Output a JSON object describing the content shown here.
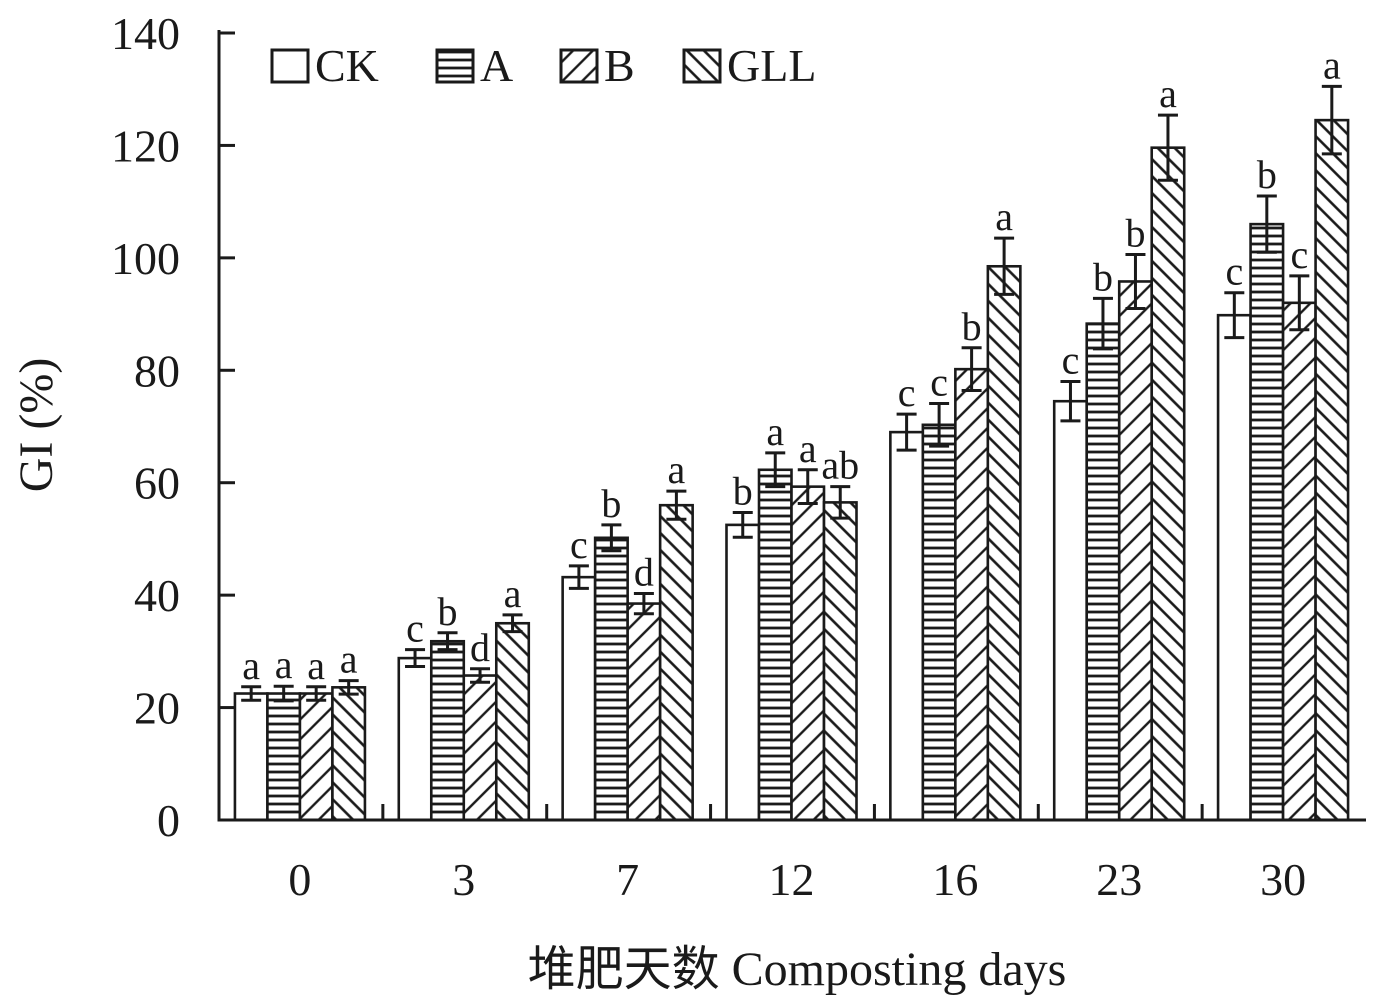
{
  "chart_data": {
    "type": "bar",
    "xlabel": "堆肥天数 Composting days",
    "ylabel": "GI (%)",
    "ylim": [
      0,
      140
    ],
    "yticks": [
      0,
      20,
      40,
      60,
      80,
      100,
      120,
      140
    ],
    "categories": [
      "0",
      "3",
      "7",
      "12",
      "16",
      "23",
      "30"
    ],
    "legend_position": "top-left",
    "grid": false,
    "error_bars": true,
    "series": [
      {
        "name": "CK",
        "pattern": "blank",
        "values": [
          22.5,
          28.8,
          43.2,
          52.5,
          69,
          74.5,
          89.8
        ],
        "errors": [
          1.2,
          1.5,
          2.0,
          2.2,
          3.2,
          3.5,
          4.0
        ],
        "labels": [
          "a",
          "c",
          "c",
          "b",
          "c",
          "c",
          "c"
        ]
      },
      {
        "name": "A",
        "pattern": "horizontal-lines",
        "values": [
          22.5,
          31.8,
          50.2,
          62.3,
          70.3,
          88.3,
          106
        ],
        "errors": [
          1.3,
          1.5,
          2.3,
          3.0,
          3.8,
          4.5,
          5.0
        ],
        "labels": [
          "a",
          "b",
          "b",
          "a",
          "c",
          "b",
          "b"
        ]
      },
      {
        "name": "B",
        "pattern": "diagonal-lines",
        "values": [
          22.5,
          25.7,
          38.5,
          59.3,
          80.2,
          95.8,
          92
        ],
        "errors": [
          1.2,
          1.2,
          1.8,
          3.0,
          3.8,
          4.8,
          4.8
        ],
        "labels": [
          "a",
          "d",
          "d",
          "a",
          "b",
          "b",
          "c"
        ]
      },
      {
        "name": "GLL",
        "pattern": "back-diagonal-lines",
        "values": [
          23.6,
          35,
          56,
          56.5,
          98.5,
          119.6,
          124.5
        ],
        "errors": [
          1.2,
          1.5,
          2.5,
          2.8,
          5.0,
          5.8,
          6.0
        ],
        "labels": [
          "a",
          "a",
          "a",
          "ab",
          "a",
          "a",
          "a"
        ]
      }
    ]
  }
}
